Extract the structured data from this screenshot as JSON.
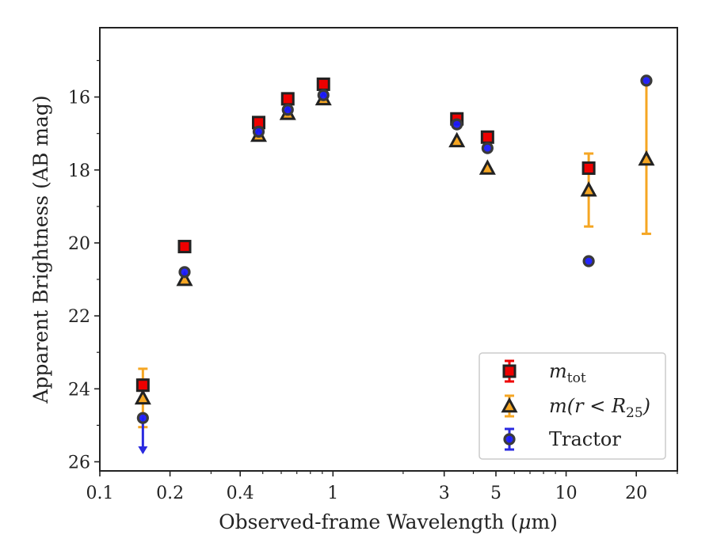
{
  "chart_data": {
    "type": "scatter",
    "xlabel_main": "Observed-frame Wavelength (",
    "xlabel_mu": "μ",
    "xlabel_tail": "m)",
    "ylabel": "Apparent Brightness (AB mag)",
    "xscale": "log",
    "xlim": [
      0.1,
      30
    ],
    "ylim": [
      26.25,
      14.1
    ],
    "y_inverted": true,
    "grid": false,
    "legend_position": "lower-right",
    "x_ticks": [
      {
        "value": 0.1,
        "label": "0.1"
      },
      {
        "value": 0.2,
        "label": "0.2"
      },
      {
        "value": 0.4,
        "label": "0.4"
      },
      {
        "value": 1,
        "label": "1"
      },
      {
        "value": 3,
        "label": "3"
      },
      {
        "value": 5,
        "label": "5"
      },
      {
        "value": 10,
        "label": "10"
      },
      {
        "value": 20,
        "label": "20"
      }
    ],
    "x_minor_ticks": [
      0.3,
      0.5,
      0.6,
      0.7,
      0.8,
      0.9,
      2,
      4,
      6,
      7,
      8,
      9,
      30
    ],
    "y_ticks": [
      {
        "value": 16,
        "label": "16"
      },
      {
        "value": 18,
        "label": "18"
      },
      {
        "value": 20,
        "label": "20"
      },
      {
        "value": 22,
        "label": "22"
      },
      {
        "value": 24,
        "label": "24"
      },
      {
        "value": 26,
        "label": "26"
      }
    ],
    "y_minor_ticks": [
      15,
      17,
      19,
      21,
      23,
      25
    ],
    "series": [
      {
        "key": "mtot",
        "marker": "square",
        "face_color": "#ee0000",
        "edge_color": "#222222",
        "errbar_color": "#ee0000",
        "points": [
          {
            "x": 0.153,
            "y": 23.9,
            "err": 0.15
          },
          {
            "x": 0.231,
            "y": 20.1
          },
          {
            "x": 0.48,
            "y": 16.7
          },
          {
            "x": 0.64,
            "y": 16.05
          },
          {
            "x": 0.91,
            "y": 15.65
          },
          {
            "x": 3.4,
            "y": 16.6
          },
          {
            "x": 4.6,
            "y": 17.1
          },
          {
            "x": 12.5,
            "y": 17.95
          }
        ]
      },
      {
        "key": "mr25",
        "marker": "triangle",
        "face_color": "#f5a623",
        "edge_color": "#222222",
        "errbar_color": "#f5a623",
        "points": [
          {
            "x": 0.153,
            "y": 24.25,
            "err_low": 23.45,
            "err_high": 25.05
          },
          {
            "x": 0.231,
            "y": 21.0
          },
          {
            "x": 0.48,
            "y": 17.05
          },
          {
            "x": 0.64,
            "y": 16.45
          },
          {
            "x": 0.91,
            "y": 16.05
          },
          {
            "x": 3.4,
            "y": 17.2
          },
          {
            "x": 4.6,
            "y": 17.95
          },
          {
            "x": 12.5,
            "y": 18.55,
            "err_low": 17.55,
            "err_high": 19.55
          },
          {
            "x": 22.1,
            "y": 17.7,
            "err_low": 15.55,
            "err_high": 19.75
          }
        ]
      },
      {
        "key": "tractor",
        "marker": "circle",
        "face_color": "#1a1aff",
        "edge_color": "#3a3a3a",
        "errbar_color": "#2a2ae0",
        "points": [
          {
            "x": 0.153,
            "y": 24.8,
            "upper_limit_to": 25.75
          },
          {
            "x": 0.231,
            "y": 20.8
          },
          {
            "x": 0.48,
            "y": 16.95
          },
          {
            "x": 0.64,
            "y": 16.35
          },
          {
            "x": 0.91,
            "y": 15.95
          },
          {
            "x": 3.4,
            "y": 16.75
          },
          {
            "x": 4.6,
            "y": 17.4
          },
          {
            "x": 12.5,
            "y": 20.5
          },
          {
            "x": 22.1,
            "y": 15.55
          }
        ]
      }
    ],
    "legend": [
      {
        "series": "mtot",
        "label_main": "m",
        "label_sub": "tot",
        "label_tail": ""
      },
      {
        "series": "mr25",
        "label_main": "m(r < R",
        "label_sub": "25",
        "label_tail": ")"
      },
      {
        "series": "tractor",
        "label_main": "Tractor",
        "label_sub": "",
        "label_tail": ""
      }
    ]
  }
}
